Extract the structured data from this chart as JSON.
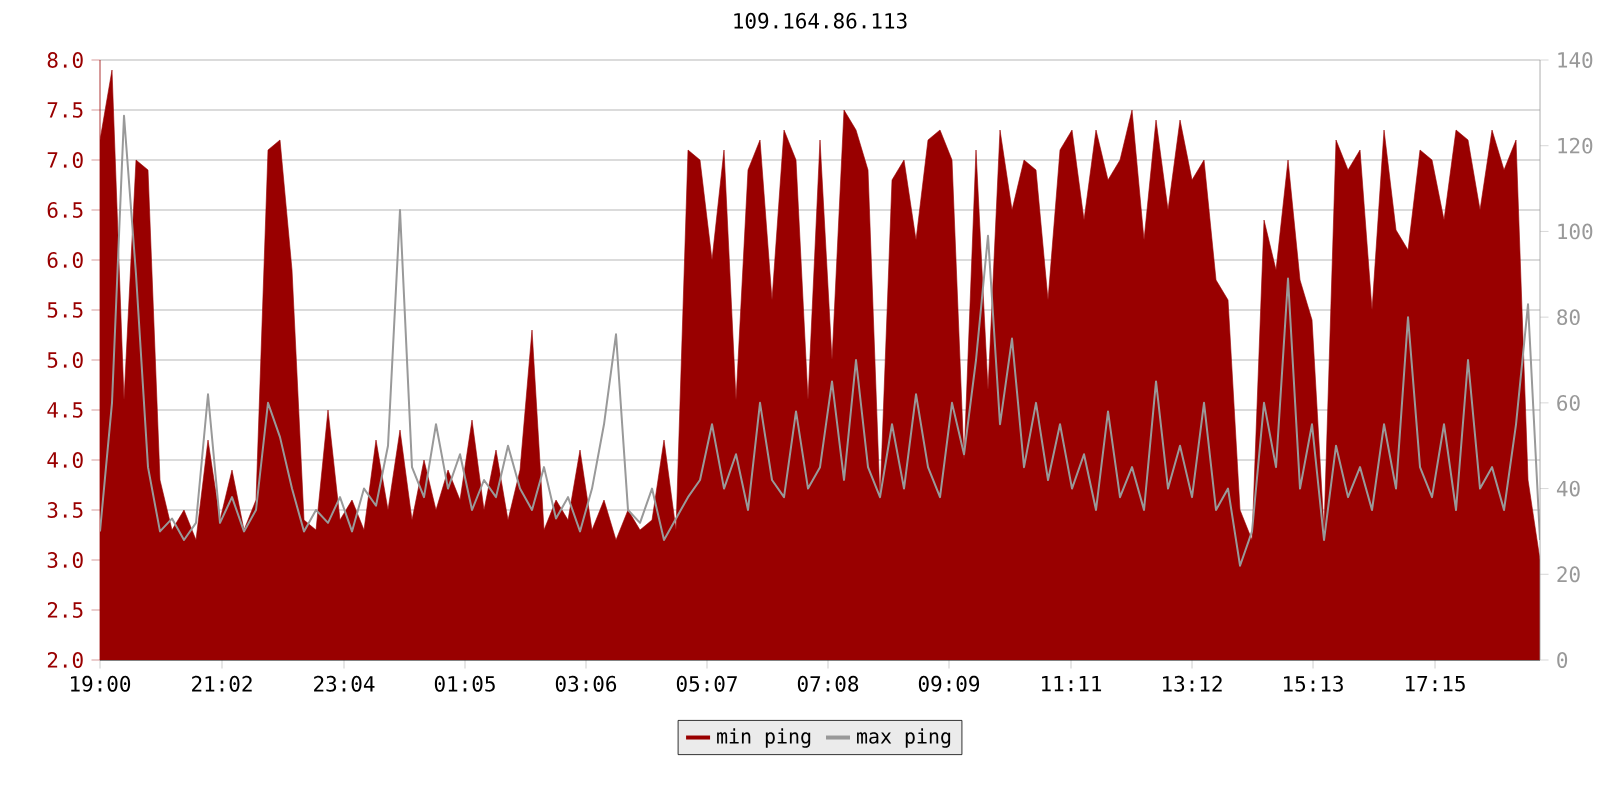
{
  "chart_data": {
    "type": "area",
    "title": "109.164.86.113",
    "x": [
      "2000-01-01T19:00",
      "2000-01-01T19:12",
      "2000-01-01T19:24",
      "2000-01-01T19:36",
      "2000-01-01T19:48",
      "2000-01-01T20:00",
      "2000-01-01T20:12",
      "2000-01-01T20:24",
      "2000-01-01T20:36",
      "2000-01-01T20:48",
      "2000-01-01T21:00",
      "2000-01-01T21:12",
      "2000-01-01T21:24",
      "2000-01-01T21:36",
      "2000-01-01T21:48",
      "2000-01-01T22:00",
      "2000-01-01T22:12",
      "2000-01-01T22:24",
      "2000-01-01T22:36",
      "2000-01-01T22:48",
      "2000-01-01T23:00",
      "2000-01-01T23:12",
      "2000-01-01T23:24",
      "2000-01-01T23:36",
      "2000-01-01T23:48",
      "2000-01-02T00:00",
      "2000-01-02T00:12",
      "2000-01-02T00:24",
      "2000-01-02T00:36",
      "2000-01-02T00:48",
      "2000-01-02T01:00",
      "2000-01-02T01:12",
      "2000-01-02T01:24",
      "2000-01-02T01:36",
      "2000-01-02T01:48",
      "2000-01-02T02:00",
      "2000-01-02T02:12",
      "2000-01-02T02:24",
      "2000-01-02T02:36",
      "2000-01-02T02:48",
      "2000-01-02T03:00",
      "2000-01-02T03:12",
      "2000-01-02T03:24",
      "2000-01-02T03:36",
      "2000-01-02T03:48",
      "2000-01-02T04:00",
      "2000-01-02T04:12",
      "2000-01-02T04:24",
      "2000-01-02T04:36",
      "2000-01-02T04:48",
      "2000-01-02T05:00",
      "2000-01-02T05:12",
      "2000-01-02T05:24",
      "2000-01-02T05:36",
      "2000-01-02T05:48",
      "2000-01-02T06:00",
      "2000-01-02T06:12",
      "2000-01-02T06:24",
      "2000-01-02T06:36",
      "2000-01-02T06:48",
      "2000-01-02T07:00",
      "2000-01-02T07:12",
      "2000-01-02T07:24",
      "2000-01-02T07:36",
      "2000-01-02T07:48",
      "2000-01-02T08:00",
      "2000-01-02T08:12",
      "2000-01-02T08:24",
      "2000-01-02T08:36",
      "2000-01-02T08:48",
      "2000-01-02T09:00",
      "2000-01-02T09:12",
      "2000-01-02T09:24",
      "2000-01-02T09:36",
      "2000-01-02T09:48",
      "2000-01-02T10:00",
      "2000-01-02T10:12",
      "2000-01-02T10:24",
      "2000-01-02T10:36",
      "2000-01-02T10:48",
      "2000-01-02T11:00",
      "2000-01-02T11:12",
      "2000-01-02T11:24",
      "2000-01-02T11:36",
      "2000-01-02T11:48",
      "2000-01-02T12:00",
      "2000-01-02T12:12",
      "2000-01-02T12:24",
      "2000-01-02T12:36",
      "2000-01-02T12:48",
      "2000-01-02T13:00",
      "2000-01-02T13:12",
      "2000-01-02T13:24",
      "2000-01-02T13:36",
      "2000-01-02T13:48",
      "2000-01-02T14:00",
      "2000-01-02T14:12",
      "2000-01-02T14:24",
      "2000-01-02T14:36",
      "2000-01-02T14:48",
      "2000-01-02T15:00",
      "2000-01-02T15:12",
      "2000-01-02T15:24",
      "2000-01-02T15:36",
      "2000-01-02T15:48",
      "2000-01-02T16:00",
      "2000-01-02T16:12",
      "2000-01-02T16:24",
      "2000-01-02T16:36",
      "2000-01-02T16:48",
      "2000-01-02T17:00",
      "2000-01-02T17:12",
      "2000-01-02T17:24",
      "2000-01-02T17:36",
      "2000-01-02T17:48",
      "2000-01-02T18:00",
      "2000-01-02T18:12",
      "2000-01-02T18:24",
      "2000-01-02T18:36",
      "2000-01-02T18:48",
      "2000-01-02T19:00"
    ],
    "xlim": [
      "2000-01-01T19:00",
      "2000-01-02T19:00"
    ],
    "xticks": [
      {
        "value": "2000-01-01T19:00",
        "label": "19:00"
      },
      {
        "value": "2000-01-01T21:02",
        "label": "21:02"
      },
      {
        "value": "2000-01-01T23:04",
        "label": "23:04"
      },
      {
        "value": "2000-01-02T01:05",
        "label": "01:05"
      },
      {
        "value": "2000-01-02T03:06",
        "label": "03:06"
      },
      {
        "value": "2000-01-02T05:07",
        "label": "05:07"
      },
      {
        "value": "2000-01-02T07:08",
        "label": "07:08"
      },
      {
        "value": "2000-01-02T09:09",
        "label": "09:09"
      },
      {
        "value": "2000-01-02T11:11",
        "label": "11:11"
      },
      {
        "value": "2000-01-02T13:12",
        "label": "13:12"
      },
      {
        "value": "2000-01-02T15:13",
        "label": "15:13"
      },
      {
        "value": "2000-01-02T17:15",
        "label": "17:15"
      }
    ],
    "ylim": [
      2,
      8
    ],
    "yticks": [
      {
        "value": 2,
        "label": "2.0"
      },
      {
        "value": 2.5,
        "label": "2.5"
      },
      {
        "value": 3,
        "label": "3.0"
      },
      {
        "value": 3.5,
        "label": "3.5"
      },
      {
        "value": 4,
        "label": "4.0"
      },
      {
        "value": 4.5,
        "label": "4.5"
      },
      {
        "value": 5,
        "label": "5.0"
      },
      {
        "value": 5.5,
        "label": "5.5"
      },
      {
        "value": 6,
        "label": "6.0"
      },
      {
        "value": 6.5,
        "label": "6.5"
      },
      {
        "value": 7,
        "label": "7.0"
      },
      {
        "value": 7.5,
        "label": "7.5"
      },
      {
        "value": 8,
        "label": "8.0"
      }
    ],
    "y2lim": [
      0,
      140
    ],
    "y2ticks": [
      0,
      20,
      40,
      60,
      80,
      100,
      120,
      140
    ],
    "grid": "y",
    "legend": "bottom",
    "series": [
      {
        "name": "min ping",
        "color": "#990000",
        "values": [
          7.2,
          7.9,
          4.6,
          7.0,
          6.9,
          3.8,
          3.3,
          3.5,
          3.2,
          4.2,
          3.4,
          3.9,
          3.3,
          3.6,
          7.1,
          7.2,
          5.9,
          3.4,
          3.3,
          4.5,
          3.4,
          3.6,
          3.3,
          4.2,
          3.5,
          4.3,
          3.4,
          4.0,
          3.5,
          3.9,
          3.6,
          4.4,
          3.5,
          4.1,
          3.4,
          3.9,
          5.3,
          3.3,
          3.6,
          3.4,
          4.1,
          3.3,
          3.6,
          3.2,
          3.5,
          3.3,
          3.4,
          4.2,
          3.3,
          7.1,
          7.0,
          6.0,
          7.1,
          4.6,
          6.9,
          7.2,
          5.6,
          7.3,
          7.0,
          4.6,
          7.2,
          5.0,
          7.5,
          7.3,
          6.9,
          3.6,
          6.8,
          7.0,
          6.2,
          7.2,
          7.3,
          7.0,
          4.0,
          7.1,
          4.7,
          7.3,
          6.5,
          7.0,
          6.9,
          5.6,
          7.1,
          7.3,
          6.4,
          7.3,
          6.8,
          7.0,
          7.5,
          6.2,
          7.4,
          6.5,
          7.4,
          6.8,
          7.0,
          5.8,
          5.6,
          3.5,
          3.2,
          6.4,
          5.9,
          7.0,
          5.8,
          5.4,
          3.3,
          7.2,
          6.9,
          7.1,
          5.5,
          7.3,
          6.3,
          6.1,
          7.1,
          7.0,
          6.4,
          7.3,
          7.2,
          6.5,
          7.3,
          6.9,
          7.2,
          3.8,
          3.0
        ]
      },
      {
        "name": "max ping",
        "type": "line",
        "axis": "y2",
        "color": "#999999",
        "values": [
          30,
          60,
          127,
          90,
          45,
          30,
          33,
          28,
          32,
          62,
          32,
          38,
          30,
          35,
          60,
          52,
          40,
          30,
          35,
          32,
          38,
          30,
          40,
          36,
          50,
          105,
          45,
          38,
          55,
          40,
          48,
          35,
          42,
          38,
          50,
          40,
          35,
          45,
          33,
          38,
          30,
          40,
          55,
          76,
          35,
          32,
          40,
          28,
          33,
          38,
          42,
          55,
          40,
          48,
          35,
          60,
          42,
          38,
          58,
          40,
          45,
          65,
          42,
          70,
          45,
          38,
          55,
          40,
          62,
          45,
          38,
          60,
          48,
          70,
          99,
          55,
          75,
          45,
          60,
          42,
          55,
          40,
          48,
          35,
          58,
          38,
          45,
          35,
          65,
          40,
          50,
          38,
          60,
          35,
          40,
          22,
          30,
          60,
          45,
          89,
          40,
          55,
          28,
          50,
          38,
          45,
          35,
          55,
          40,
          80,
          45,
          38,
          55,
          35,
          70,
          40,
          45,
          35,
          55,
          83,
          28
        ]
      }
    ]
  }
}
